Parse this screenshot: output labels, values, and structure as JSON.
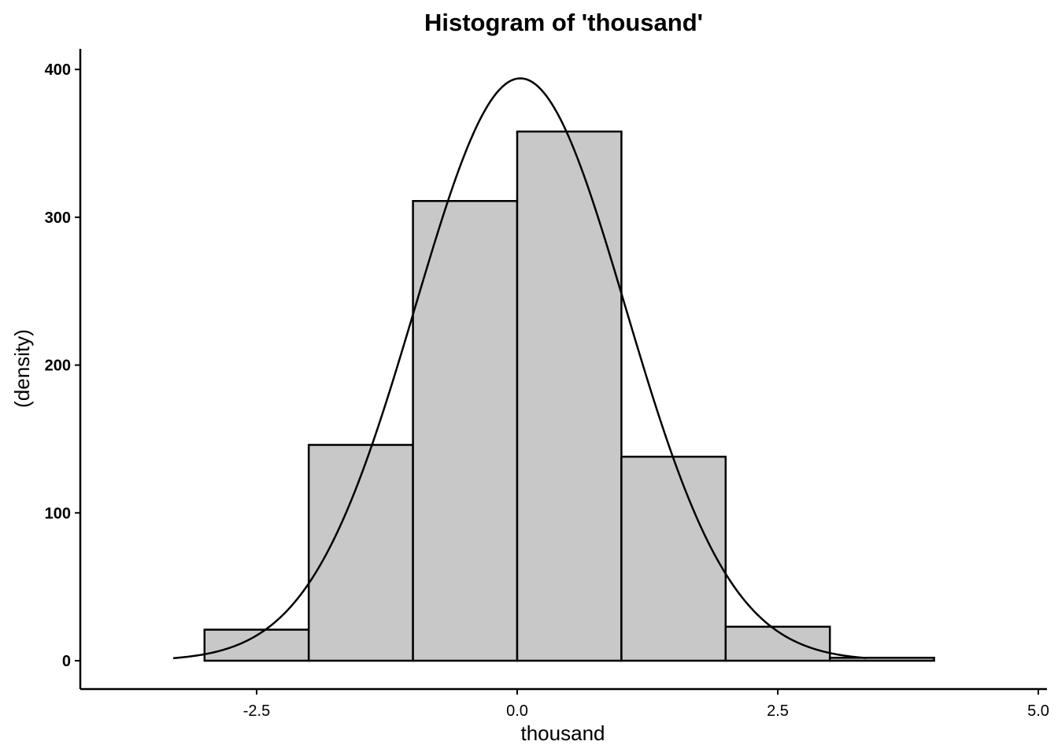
{
  "chart_data": {
    "type": "bar",
    "title": "Histogram of 'thousand'",
    "xlabel": "thousand",
    "ylabel": "(density)",
    "xlim": [
      -4.2,
      5.0
    ],
    "ylim": [
      -19,
      414
    ],
    "x_ticks": [
      {
        "value": -2.5,
        "label": "-2.5"
      },
      {
        "value": 0.0,
        "label": "0.0"
      },
      {
        "value": 2.5,
        "label": "2.5"
      },
      {
        "value": 5.0,
        "label": "5.0"
      }
    ],
    "y_ticks": [
      {
        "value": 0,
        "label": "0"
      },
      {
        "value": 100,
        "label": "100"
      },
      {
        "value": 200,
        "label": "200"
      },
      {
        "value": 300,
        "label": "300"
      },
      {
        "value": 400,
        "label": "400"
      }
    ],
    "bins": [
      {
        "start": -3,
        "end": -2,
        "value": 21
      },
      {
        "start": -2,
        "end": -1,
        "value": 146
      },
      {
        "start": -1,
        "end": 0,
        "value": 311
      },
      {
        "start": 0,
        "end": 1,
        "value": 358
      },
      {
        "start": 1,
        "end": 2,
        "value": 138
      },
      {
        "start": 2,
        "end": 3,
        "value": 23
      },
      {
        "start": 3,
        "end": 4,
        "value": 2
      }
    ],
    "density_curve": {
      "x_range": [
        -3.3,
        3.35
      ],
      "mean": 0.03,
      "sd": 1.01,
      "peak": 394
    },
    "bar_fill": "#c8c8c8",
    "grid": false,
    "legend": "none"
  }
}
